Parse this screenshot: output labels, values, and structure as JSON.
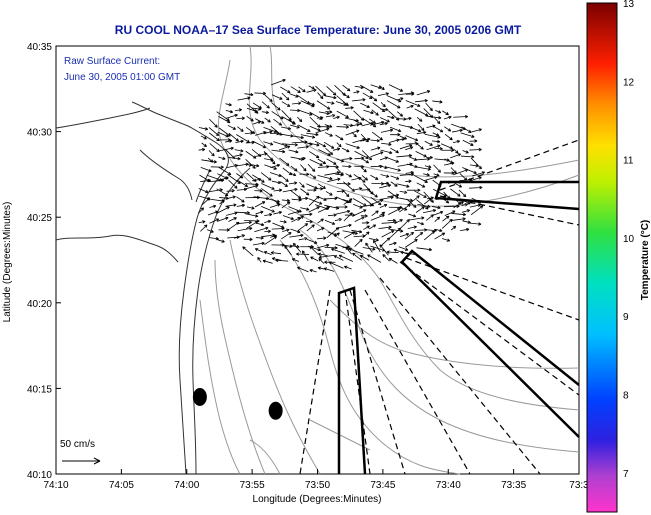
{
  "chart_data": {
    "type": "scatter",
    "title": "RU COOL  NOAA–17  Sea Surface Temperature:  June 30, 2005 0206 GMT",
    "xlabel": "Longitude (Degrees:Minutes)",
    "ylabel": "Latitude (Degrees:Minutes)",
    "x_tick_labels": [
      "74:10",
      "74:05",
      "74:00",
      "73:55",
      "73:50",
      "73:45",
      "73:40",
      "73:35",
      "73:3"
    ],
    "y_tick_labels": [
      "40:35",
      "40:30",
      "40:25",
      "40:20",
      "40:15",
      "40:10"
    ],
    "xlim": [
      -74.1667,
      -73.5
    ],
    "ylim": [
      40.1667,
      40.5833
    ],
    "annotation_line1": "Raw Surface Current:",
    "annotation_line2": "June 30, 2005 01:00 GMT",
    "scale_label": "50 cm/s",
    "colorbar": {
      "label": "Temperature (°C)",
      "ticks": [
        "13",
        "12",
        "11",
        "10",
        "9",
        "8",
        "7"
      ],
      "range": [
        6.5,
        13
      ]
    },
    "markers": [
      {
        "lon": -73.9833,
        "lat": 40.2417
      },
      {
        "lon": -73.8867,
        "lat": 40.2283
      }
    ],
    "grid": false,
    "legend": "none"
  }
}
